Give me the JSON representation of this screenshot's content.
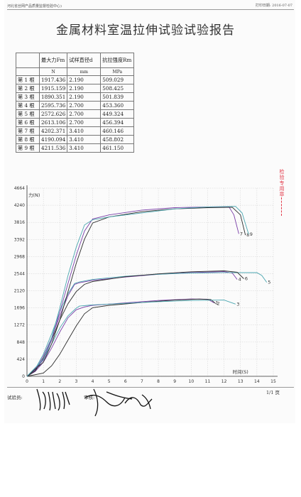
{
  "header": {
    "org": "河北省丝网产品质量监督检验中心)",
    "print_date": "打印日期: 2016-07-07"
  },
  "title": "金属材料室温拉伸试验试验报告",
  "table": {
    "headers": [
      "",
      "最大力Fm",
      "试样直径d",
      "抗拉强度Rm"
    ],
    "units": [
      "",
      "N",
      "mm",
      "MPa"
    ],
    "rows": [
      [
        "第 1 根",
        "1917.436",
        "2.190",
        "509.029"
      ],
      [
        "第 2 根",
        "1915.159",
        "2.190",
        "508.425"
      ],
      [
        "第 3 根",
        "1890.351",
        "2.190",
        "501.839"
      ],
      [
        "第 4 根",
        "2595.736",
        "2.700",
        "453.360"
      ],
      [
        "第 5 根",
        "2572.626",
        "2.700",
        "449.324"
      ],
      [
        "第 6 根",
        "2613.106",
        "2.700",
        "456.394"
      ],
      [
        "第 7 根",
        "4202.371",
        "3.410",
        "460.146"
      ],
      [
        "第 8 根",
        "4190.094",
        "3.410",
        "458.802"
      ],
      [
        "第 9 根",
        "4211.536",
        "3.410",
        "461.150"
      ]
    ]
  },
  "stamp_text": "检验专用章",
  "chart_data": {
    "type": "line",
    "ylabel": "力(N)",
    "xlabel": "时间(S)",
    "yticks": [
      0,
      424,
      848,
      1272,
      1696,
      2120,
      2544,
      2968,
      3392,
      3816,
      4240,
      4664
    ],
    "yticklabels": [
      "0",
      "424",
      "848",
      "1272",
      "1696",
      "2120",
      "2544",
      "2968",
      "3392",
      "3816",
      "4240",
      "4664"
    ],
    "xticks": [
      0,
      1,
      2,
      3,
      4,
      5,
      6,
      7,
      8,
      9,
      10,
      11,
      12,
      13,
      14,
      15
    ],
    "xticklabels": [
      "0",
      "1",
      "2",
      "3",
      "4",
      "5",
      "6",
      "7",
      "8",
      "9",
      "10",
      "11",
      "12",
      "13",
      "14",
      "15"
    ],
    "xlim": [
      0,
      15
    ],
    "ylim": [
      0,
      4664
    ],
    "grid": true,
    "series": [
      {
        "name": "1",
        "color": "#7a3fa8",
        "x": [
          0,
          0.5,
          1,
          1.5,
          2,
          2.5,
          3,
          3.5,
          4,
          6,
          8,
          10,
          11,
          11.4
        ],
        "y": [
          0,
          120,
          350,
          700,
          1100,
          1450,
          1650,
          1720,
          1760,
          1820,
          1880,
          1917,
          1910,
          1820
        ]
      },
      {
        "name": "2",
        "color": "#2a2a2a",
        "x": [
          0,
          1,
          1.5,
          2,
          2.5,
          3,
          3.5,
          4,
          5,
          7,
          9,
          10.5,
          11.2,
          11.5
        ],
        "y": [
          0,
          80,
          260,
          550,
          900,
          1250,
          1550,
          1700,
          1760,
          1830,
          1890,
          1915,
          1900,
          1800
        ]
      },
      {
        "name": "3",
        "color": "#4aa6b0",
        "x": [
          0,
          0.5,
          1,
          1.5,
          2,
          2.5,
          3,
          3.2,
          4,
          6,
          8,
          10,
          12,
          12.7
        ],
        "y": [
          0,
          150,
          420,
          800,
          1200,
          1500,
          1690,
          1740,
          1770,
          1810,
          1850,
          1880,
          1890,
          1790
        ]
      },
      {
        "name": "4",
        "color": "#7a3fa8",
        "x": [
          0,
          0.5,
          1,
          1.5,
          2,
          2.5,
          2.9,
          3.2,
          4,
          6,
          8,
          10,
          12,
          12.5,
          12.8
        ],
        "y": [
          0,
          150,
          500,
          950,
          1500,
          2000,
          2280,
          2320,
          2380,
          2460,
          2530,
          2570,
          2595,
          2560,
          2400
        ]
      },
      {
        "name": "5",
        "color": "#4aa6b0",
        "x": [
          0,
          0.5,
          1,
          1.5,
          2,
          2.5,
          2.9,
          3.2,
          4,
          6,
          8,
          10,
          12,
          14,
          14.3,
          14.6
        ],
        "y": [
          0,
          180,
          550,
          1050,
          1600,
          2050,
          2300,
          2340,
          2400,
          2480,
          2530,
          2560,
          2572,
          2570,
          2500,
          2330
        ]
      },
      {
        "name": "6",
        "color": "#2a2a2a",
        "x": [
          0,
          0.5,
          1,
          1.5,
          2,
          2.5,
          3,
          3.5,
          4,
          6,
          8,
          10,
          12,
          12.8,
          13.2
        ],
        "y": [
          0,
          130,
          450,
          900,
          1400,
          1800,
          2100,
          2280,
          2350,
          2470,
          2540,
          2590,
          2613,
          2580,
          2420
        ]
      },
      {
        "name": "7",
        "color": "#7a3fa8",
        "x": [
          0,
          1,
          1.5,
          2,
          2.5,
          3,
          3.5,
          4,
          5,
          7,
          9,
          11,
          12.3,
          12.6,
          12.9
        ],
        "y": [
          0,
          400,
          900,
          1600,
          2300,
          3000,
          3600,
          3900,
          4000,
          4120,
          4180,
          4200,
          4202,
          4000,
          3530
        ]
      },
      {
        "name": "8",
        "color": "#2a2a2a",
        "x": [
          0,
          1,
          1.5,
          2,
          2.5,
          3,
          3.5,
          4,
          5,
          7,
          9,
          11,
          12.5,
          13.0,
          13.3
        ],
        "y": [
          0,
          350,
          800,
          1400,
          2100,
          2800,
          3400,
          3800,
          3950,
          4080,
          4150,
          4180,
          4190,
          4000,
          3500
        ]
      },
      {
        "name": "9",
        "color": "#4aa6b0",
        "x": [
          0,
          1,
          1.5,
          2,
          2.5,
          3,
          3.5,
          4,
          5,
          7,
          9,
          11,
          12.7,
          13.1,
          13.5
        ],
        "y": [
          0,
          420,
          950,
          1700,
          2500,
          3200,
          3750,
          3880,
          3950,
          4050,
          4150,
          4200,
          4211,
          4050,
          3520
        ]
      }
    ]
  },
  "footer": {
    "tester": "试验员:",
    "reviewer": "审核:",
    "page": "1/1 页"
  }
}
